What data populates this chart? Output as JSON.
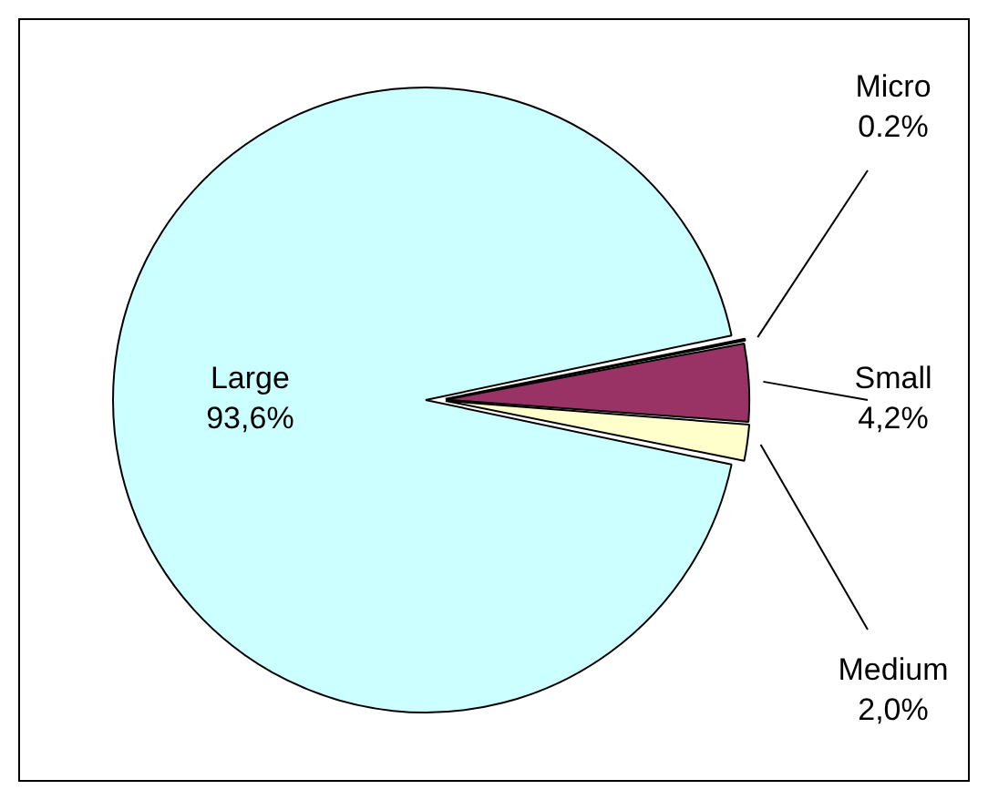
{
  "chart_data": {
    "type": "pie",
    "categories": [
      "Micro",
      "Small",
      "Medium",
      "Large"
    ],
    "values": [
      0.2,
      4.2,
      2.0,
      93.6
    ],
    "value_labels": [
      "0.2%",
      "4,2%",
      "2,0%",
      "93,6%"
    ],
    "colors": [
      "#000000",
      "#993366",
      "#ffffcc",
      "#ccffff"
    ],
    "legend": false
  }
}
